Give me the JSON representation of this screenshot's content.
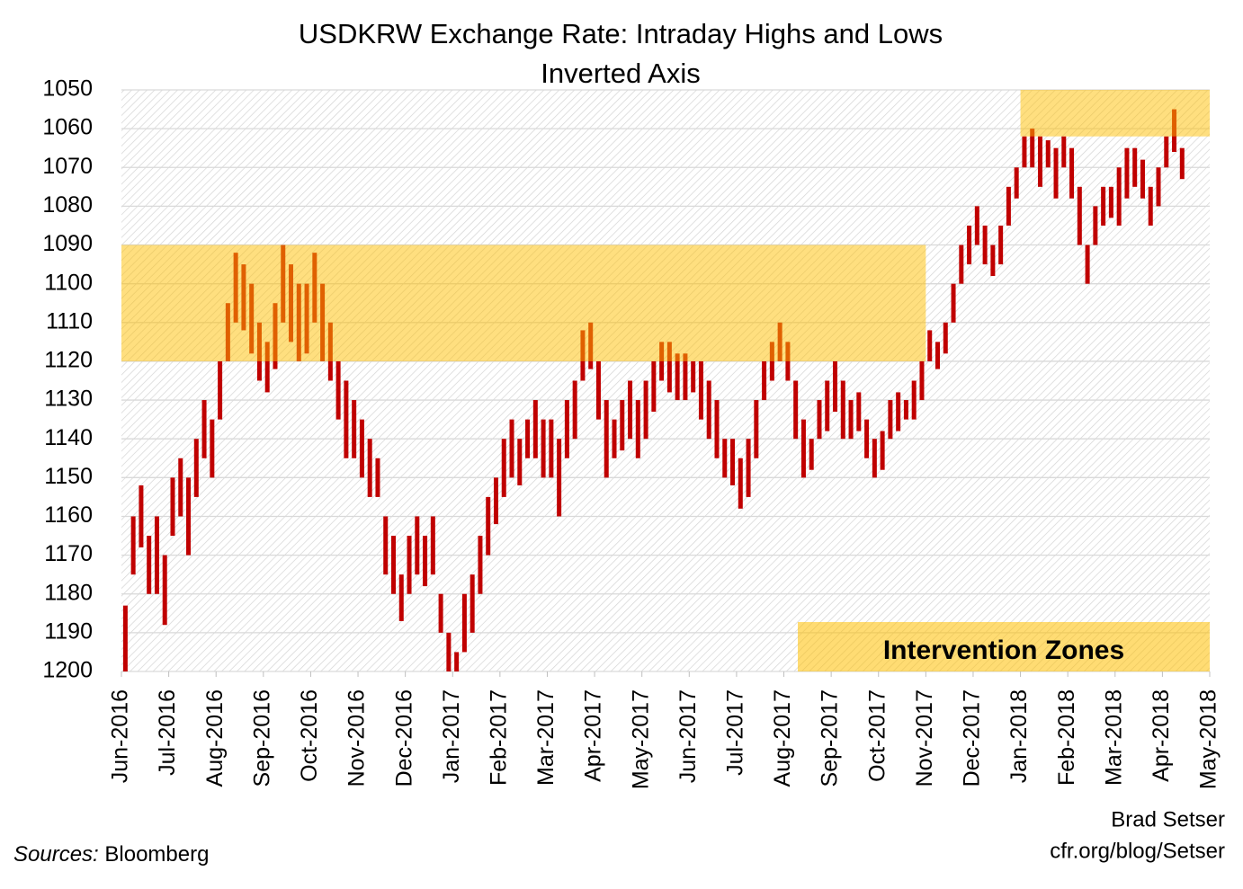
{
  "chart_data": {
    "type": "hilo",
    "title": "USDKRW Exchange Rate: Intraday Highs and Lows",
    "subtitle": "Inverted Axis",
    "ylim": [
      1050,
      1200
    ],
    "y_inverted": true,
    "yticks": [
      1050,
      1060,
      1070,
      1080,
      1090,
      1100,
      1110,
      1120,
      1130,
      1140,
      1150,
      1160,
      1170,
      1180,
      1190,
      1200
    ],
    "grid": true,
    "color": "#c00000",
    "xticks": [
      "Jun-2016",
      "Jul-2016",
      "Aug-2016",
      "Sep-2016",
      "Oct-2016",
      "Nov-2016",
      "Dec-2016",
      "Jan-2017",
      "Feb-2017",
      "Mar-2017",
      "Apr-2017",
      "May-2017",
      "Jun-2017",
      "Jul-2017",
      "Aug-2017",
      "Sep-2017",
      "Oct-2017",
      "Nov-2017",
      "Dec-2017",
      "Jan-2018",
      "Feb-2018",
      "Mar-2018",
      "Apr-2018",
      "May-2018"
    ],
    "months": [
      {
        "low": [
          1183,
          1160,
          1152,
          1165,
          1160,
          1170
        ],
        "high": [
          1200,
          1175,
          1168,
          1180,
          1180,
          1188
        ]
      },
      {
        "low": [
          1150,
          1145,
          1150,
          1140,
          1130,
          1135
        ],
        "high": [
          1165,
          1160,
          1170,
          1155,
          1145,
          1150
        ]
      },
      {
        "low": [
          1120,
          1105,
          1092,
          1095,
          1100,
          1110
        ],
        "high": [
          1135,
          1120,
          1110,
          1112,
          1118,
          1125
        ]
      },
      {
        "low": [
          1115,
          1105,
          1090,
          1095,
          1100,
          1100
        ],
        "high": [
          1128,
          1122,
          1110,
          1115,
          1120,
          1118
        ]
      },
      {
        "low": [
          1092,
          1100,
          1110,
          1120,
          1125,
          1130
        ],
        "high": [
          1110,
          1120,
          1125,
          1135,
          1145,
          1145
        ]
      },
      {
        "low": [
          1135,
          1140,
          1145,
          1160,
          1165,
          1175
        ],
        "high": [
          1150,
          1155,
          1155,
          1175,
          1180,
          1187
        ]
      },
      {
        "low": [
          1165,
          1160,
          1165,
          1160,
          1180,
          1190
        ],
        "high": [
          1180,
          1175,
          1178,
          1175,
          1190,
          1200
        ]
      },
      {
        "low": [
          1195,
          1180,
          1175,
          1165,
          1155,
          1150
        ],
        "high": [
          1200,
          1195,
          1190,
          1180,
          1170,
          1162
        ]
      },
      {
        "low": [
          1140,
          1135,
          1140,
          1135,
          1130,
          1135
        ],
        "high": [
          1155,
          1150,
          1152,
          1145,
          1145,
          1150
        ]
      },
      {
        "low": [
          1135,
          1140,
          1130,
          1125,
          1112,
          1110
        ],
        "high": [
          1150,
          1160,
          1145,
          1140,
          1125,
          1122
        ]
      },
      {
        "low": [
          1120,
          1130,
          1135,
          1130,
          1125,
          1130
        ],
        "high": [
          1135,
          1150,
          1145,
          1143,
          1140,
          1145
        ]
      },
      {
        "low": [
          1125,
          1120,
          1115,
          1115,
          1118,
          1118
        ],
        "high": [
          1140,
          1133,
          1125,
          1128,
          1130,
          1130
        ]
      },
      {
        "low": [
          1120,
          1120,
          1125,
          1130,
          1140,
          1140
        ],
        "high": [
          1128,
          1135,
          1140,
          1145,
          1150,
          1152
        ]
      },
      {
        "low": [
          1145,
          1140,
          1130,
          1120,
          1115,
          1110
        ],
        "high": [
          1158,
          1155,
          1145,
          1130,
          1125,
          1120
        ]
      },
      {
        "low": [
          1115,
          1125,
          1135,
          1140,
          1130,
          1125
        ],
        "high": [
          1125,
          1140,
          1150,
          1148,
          1140,
          1138
        ]
      },
      {
        "low": [
          1120,
          1125,
          1130,
          1128,
          1135,
          1140
        ],
        "high": [
          1133,
          1140,
          1140,
          1138,
          1145,
          1150
        ]
      },
      {
        "low": [
          1138,
          1130,
          1128,
          1130,
          1125,
          1120
        ],
        "high": [
          1148,
          1140,
          1138,
          1135,
          1135,
          1130
        ]
      },
      {
        "low": [
          1112,
          1115,
          1110,
          1100,
          1090,
          1085
        ],
        "high": [
          1120,
          1122,
          1118,
          1110,
          1100,
          1095
        ]
      },
      {
        "low": [
          1080,
          1085,
          1090,
          1085,
          1075,
          1070
        ],
        "high": [
          1090,
          1095,
          1098,
          1095,
          1085,
          1078
        ]
      },
      {
        "low": [
          1062,
          1060,
          1062,
          1063,
          1065,
          1062
        ],
        "high": [
          1070,
          1070,
          1075,
          1070,
          1078,
          1070
        ]
      },
      {
        "low": [
          1065,
          1075,
          1090,
          1080,
          1075,
          1075
        ],
        "high": [
          1078,
          1090,
          1100,
          1090,
          1085,
          1083
        ]
      },
      {
        "low": [
          1070,
          1065,
          1065,
          1068,
          1075,
          1070
        ],
        "high": [
          1085,
          1078,
          1075,
          1078,
          1085,
          1080
        ]
      },
      {
        "low": [
          1062,
          1055,
          1065,
          null,
          null,
          null
        ],
        "high": [
          1070,
          1066,
          1073,
          null,
          null,
          null
        ]
      }
    ],
    "zones": [
      {
        "from": "Jun-2016",
        "to": "Oct-2017",
        "ylim": [
          1090,
          1120
        ]
      },
      {
        "from": "Jan-2018",
        "to": "Apr-2018",
        "ylim": [
          1050,
          1062
        ]
      }
    ],
    "zone_color": "#ffc000",
    "zones_label": "Intervention Zones",
    "source_label": "Sources:",
    "source": "Bloomberg",
    "credit": [
      "Brad Setser",
      "cfr.org/blog/Setser"
    ]
  }
}
